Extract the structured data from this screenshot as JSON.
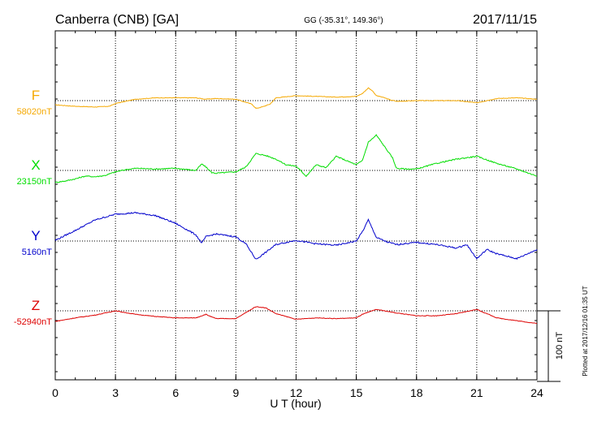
{
  "header": {
    "station": "Canberra (CNB)  [GA]",
    "coords": "GG (-35.31°, 149.36°)",
    "date": "2017/11/15"
  },
  "footer": {
    "plotted": "Plotted at 2017/12/16 01:35 UT",
    "scale_label": "100 nT"
  },
  "colors": {
    "F": "#f5a800",
    "X": "#00dd00",
    "Y": "#0000cc",
    "Z": "#dd0000"
  },
  "chart_data": {
    "type": "line",
    "title": "Canberra (CNB)  [GA]",
    "xlabel": "U T (hour)",
    "ylabel": "",
    "xlim": [
      0,
      24
    ],
    "x_ticks": [
      0,
      3,
      6,
      9,
      12,
      15,
      18,
      21,
      24
    ],
    "x_tick_labels": [
      "0",
      "3",
      "6",
      "9",
      "12",
      "15",
      "18",
      "21",
      "24"
    ],
    "grid": true,
    "scale_bar_nT": 100,
    "series": [
      {
        "name": "F",
        "baseline_label": "58020nT",
        "baseline_nT": 58020,
        "color": "#f5a800",
        "x": [
          0,
          0.5,
          1,
          2,
          2.7,
          3,
          4,
          5,
          6,
          7,
          7.5,
          8,
          9,
          9.8,
          10,
          10.3,
          10.7,
          11,
          12,
          13,
          14,
          15,
          15.3,
          15.6,
          15.8,
          16,
          16.3,
          16.7,
          17,
          18,
          19,
          20,
          21,
          22,
          23,
          24
        ],
        "y": [
          -6,
          -7,
          -8,
          -9,
          -8,
          -4,
          2,
          4,
          4,
          4,
          2,
          3,
          2,
          -5,
          -11,
          -9,
          -5,
          4,
          7,
          6,
          5,
          6,
          10,
          18,
          14,
          7,
          5,
          1,
          -1,
          0,
          0,
          0,
          -3,
          3,
          4,
          2
        ]
      },
      {
        "name": "X",
        "baseline_label": "23150nT",
        "baseline_nT": 23150,
        "color": "#00dd00",
        "x": [
          0,
          0.5,
          1,
          1.5,
          2,
          2.5,
          3,
          3.5,
          4,
          5,
          6,
          7,
          7.3,
          7.5,
          7.8,
          8,
          9,
          9.5,
          10,
          10.5,
          11,
          11.5,
          12,
          12.5,
          13,
          13.5,
          14,
          14.5,
          15,
          15.3,
          15.6,
          16,
          16.4,
          16.8,
          17,
          17.5,
          18,
          19,
          20,
          21,
          22,
          23,
          24
        ],
        "y": [
          -17,
          -15,
          -12,
          -8,
          -9,
          -7,
          -2,
          1,
          3,
          2,
          3,
          0,
          9,
          5,
          -3,
          -4,
          -2,
          5,
          24,
          21,
          16,
          8,
          6,
          -8,
          8,
          4,
          20,
          14,
          8,
          14,
          40,
          50,
          34,
          18,
          3,
          2,
          2,
          10,
          16,
          20,
          10,
          2,
          -8
        ]
      },
      {
        "name": "Y",
        "baseline_label": "5160nT",
        "baseline_nT": 5160,
        "color": "#0000cc",
        "x": [
          0,
          1,
          2,
          3,
          4,
          5,
          6,
          7,
          7.3,
          7.5,
          8,
          9,
          9.5,
          10,
          10.3,
          11,
          12,
          13,
          14,
          15,
          15.3,
          15.6,
          16,
          16.5,
          17,
          18,
          19,
          20,
          20.5,
          21,
          21.5,
          22,
          23,
          24
        ],
        "y": [
          1,
          15,
          30,
          38,
          40,
          36,
          25,
          9,
          -3,
          6,
          10,
          6,
          -4,
          -26,
          -20,
          -5,
          1,
          -4,
          -6,
          0,
          13,
          30,
          5,
          -1,
          -5,
          -2,
          -5,
          -10,
          -5,
          -25,
          -12,
          -18,
          -25,
          -12
        ]
      },
      {
        "name": "Z",
        "baseline_label": "-52940nT",
        "baseline_nT": -52940,
        "color": "#dd0000",
        "x": [
          0,
          1,
          2,
          3,
          4,
          5,
          6,
          7,
          7.5,
          8,
          9,
          10,
          10.5,
          11,
          12,
          13,
          14,
          15,
          15.3,
          16,
          17,
          18,
          19,
          20,
          21,
          22,
          23,
          24
        ],
        "y": [
          -15,
          -10,
          -6,
          0,
          -5,
          -8,
          -10,
          -10,
          -5,
          -11,
          -11,
          6,
          4,
          -4,
          -12,
          -10,
          -11,
          -10,
          -5,
          2,
          -3,
          -7,
          -7,
          -4,
          2,
          -10,
          -14,
          -18
        ]
      }
    ]
  }
}
